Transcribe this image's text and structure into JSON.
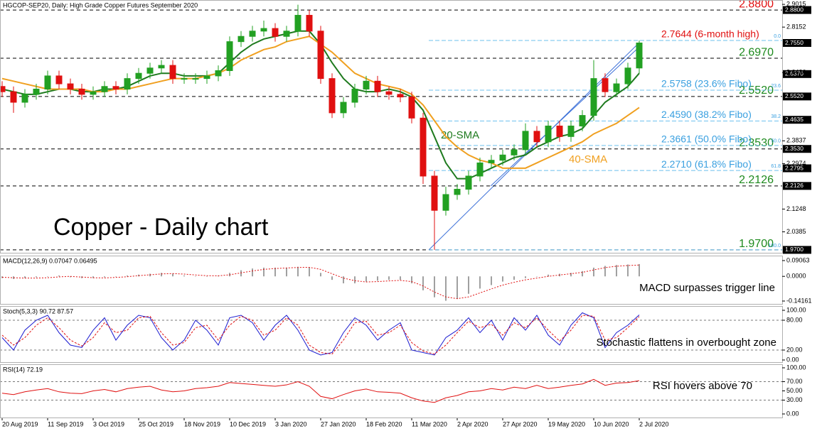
{
  "chart_data": [
    {
      "type": "candlestick",
      "title": "HGCOP-SEP20, Daily:  High Grade Copper Futures September 2020",
      "annotation": "Copper - Daily chart",
      "categories": [
        "20 Aug 2019",
        null,
        null,
        null,
        "11 Sep 2019",
        null,
        null,
        null,
        "3 Oct 2019",
        null,
        null,
        null,
        "25 Oct 2019",
        null,
        null,
        null,
        "18 Nov 2019",
        null,
        null,
        null,
        "10 Dec 2019",
        null,
        null,
        null,
        "3 Jan 2020",
        null,
        null,
        null,
        "27 Jan 2020",
        null,
        null,
        null,
        "18 Feb 2020",
        null,
        null,
        null,
        "11 Mar 2020",
        null,
        null,
        null,
        "2 Apr 2020",
        null,
        null,
        null,
        "27 Apr 2020",
        null,
        null,
        null,
        "19 May 2020",
        null,
        null,
        null,
        "10 Jun 2020",
        null,
        null,
        null,
        "2 Jul 2020"
      ],
      "open": [
        2.59,
        2.57,
        2.53,
        2.56,
        2.58,
        2.63,
        2.6,
        2.58,
        2.56,
        2.57,
        2.59,
        2.58,
        2.62,
        2.64,
        2.66,
        2.67,
        2.62,
        2.62,
        2.62,
        2.63,
        2.65,
        2.76,
        2.78,
        2.8,
        2.81,
        2.78,
        2.8,
        2.86,
        2.8,
        2.62,
        2.49,
        2.53,
        2.58,
        2.61,
        2.57,
        2.56,
        2.55,
        2.47,
        2.25,
        2.12,
        2.18,
        2.2,
        2.25,
        2.3,
        2.31,
        2.33,
        2.35,
        2.42,
        2.38,
        2.44,
        2.4,
        2.44,
        2.48,
        2.62,
        2.57,
        2.6,
        2.66
      ],
      "high": [
        2.61,
        2.59,
        2.58,
        2.6,
        2.65,
        2.65,
        2.62,
        2.6,
        2.59,
        2.61,
        2.61,
        2.64,
        2.66,
        2.68,
        2.69,
        2.69,
        2.64,
        2.64,
        2.65,
        2.67,
        2.78,
        2.8,
        2.82,
        2.84,
        2.83,
        2.82,
        2.9,
        2.88,
        2.82,
        2.64,
        2.55,
        2.6,
        2.63,
        2.63,
        2.59,
        2.58,
        2.57,
        2.49,
        2.27,
        2.21,
        2.22,
        2.27,
        2.32,
        2.33,
        2.35,
        2.37,
        2.45,
        2.44,
        2.46,
        2.46,
        2.46,
        2.5,
        2.69,
        2.64,
        2.62,
        2.68,
        2.7644
      ],
      "low": [
        2.55,
        2.49,
        2.51,
        2.54,
        2.56,
        2.58,
        2.56,
        2.54,
        2.54,
        2.55,
        2.56,
        2.56,
        2.6,
        2.62,
        2.64,
        2.6,
        2.6,
        2.6,
        2.6,
        2.61,
        2.63,
        2.74,
        2.76,
        2.78,
        2.76,
        2.76,
        2.78,
        2.78,
        2.6,
        2.47,
        2.47,
        2.51,
        2.56,
        2.55,
        2.54,
        2.53,
        2.45,
        2.22,
        1.97,
        2.1,
        2.16,
        2.18,
        2.23,
        2.28,
        2.29,
        2.31,
        2.33,
        2.36,
        2.36,
        2.38,
        2.38,
        2.42,
        2.46,
        2.55,
        2.55,
        2.58,
        2.64
      ],
      "close": [
        2.57,
        2.53,
        2.56,
        2.58,
        2.63,
        2.6,
        2.58,
        2.56,
        2.57,
        2.59,
        2.58,
        2.62,
        2.64,
        2.66,
        2.67,
        2.62,
        2.62,
        2.62,
        2.63,
        2.65,
        2.76,
        2.78,
        2.8,
        2.81,
        2.78,
        2.8,
        2.86,
        2.8,
        2.62,
        2.49,
        2.53,
        2.58,
        2.61,
        2.57,
        2.56,
        2.55,
        2.47,
        2.25,
        2.12,
        2.18,
        2.2,
        2.25,
        2.3,
        2.31,
        2.33,
        2.35,
        2.42,
        2.38,
        2.44,
        2.4,
        2.44,
        2.48,
        2.62,
        2.57,
        2.6,
        2.66,
        2.755
      ],
      "up_color": "#22a022",
      "down_color": "#e01010",
      "series": [
        {
          "name": "20-SMA",
          "color": "#1e7a1e",
          "values": [
            2.58,
            2.57,
            2.56,
            2.56,
            2.57,
            2.58,
            2.58,
            2.57,
            2.57,
            2.58,
            2.58,
            2.59,
            2.61,
            2.63,
            2.64,
            2.64,
            2.63,
            2.63,
            2.63,
            2.64,
            2.68,
            2.72,
            2.75,
            2.77,
            2.78,
            2.79,
            2.8,
            2.8,
            2.75,
            2.68,
            2.62,
            2.58,
            2.57,
            2.57,
            2.58,
            2.57,
            2.55,
            2.5,
            2.4,
            2.3,
            2.24,
            2.24,
            2.26,
            2.28,
            2.3,
            2.32,
            2.33,
            2.36,
            2.38,
            2.4,
            2.41,
            2.43,
            2.48,
            2.53,
            2.56,
            2.59,
            2.64
          ]
        },
        {
          "name": "40-SMA",
          "color": "#f0a020",
          "values": [
            2.62,
            2.61,
            2.6,
            2.59,
            2.58,
            2.58,
            2.58,
            2.58,
            2.57,
            2.57,
            2.58,
            2.58,
            2.59,
            2.6,
            2.61,
            2.62,
            2.62,
            2.62,
            2.63,
            2.64,
            2.66,
            2.69,
            2.71,
            2.73,
            2.74,
            2.76,
            2.77,
            2.78,
            2.75,
            2.72,
            2.68,
            2.64,
            2.62,
            2.6,
            2.59,
            2.58,
            2.56,
            2.52,
            2.46,
            2.4,
            2.36,
            2.33,
            2.31,
            2.3,
            2.28,
            2.28,
            2.28,
            2.3,
            2.32,
            2.34,
            2.36,
            2.38,
            2.41,
            2.43,
            2.45,
            2.48,
            2.51
          ]
        }
      ],
      "levels": [
        {
          "value": 2.88,
          "label": "2.8800",
          "color": "#e01010"
        },
        {
          "value": 2.697,
          "label": "2.6970",
          "color": "#1e8a1e"
        },
        {
          "value": 2.552,
          "label": "2.5520",
          "color": "#1e8a1e"
        },
        {
          "value": 2.353,
          "label": "2.3530",
          "color": "#1e8a1e"
        },
        {
          "value": 2.2126,
          "label": "2.2126",
          "color": "#1e8a1e"
        },
        {
          "value": 1.97,
          "label": "1.9700",
          "color": "#1e8a1e"
        }
      ],
      "fibo": [
        {
          "value": 2.7644,
          "label": "2.7644 (6-month high)",
          "ratio_label": "0.0",
          "color": "#e01010"
        },
        {
          "value": 2.5758,
          "label": "2.5758 (23.6% Fibo)",
          "ratio_label": "23.6",
          "color": "#3aa0e0"
        },
        {
          "value": 2.459,
          "label": "2.4590 (38.2% Fibo)",
          "ratio_label": "38.2",
          "color": "#3aa0e0"
        },
        {
          "value": 2.3661,
          "label": "2.3661 (50.0% Fibo)",
          "ratio_label": "50.0",
          "color": "#3aa0e0"
        },
        {
          "value": 2.271,
          "label": "2.2710 (61.8% Fibo)",
          "ratio_label": "61.8",
          "color": "#3aa0e0"
        },
        {
          "value": 1.97,
          "ratio_label": "100.0",
          "color": "#3aa0e0"
        }
      ],
      "axis_markers": [
        {
          "value": 2.88,
          "label": "2.8800"
        },
        {
          "value": 2.755,
          "label": "2.7550"
        },
        {
          "value": 2.637,
          "label": "2.6370"
        },
        {
          "value": 2.552,
          "label": "2.5520"
        },
        {
          "value": 2.4635,
          "label": "2.4635"
        },
        {
          "value": 2.353,
          "label": "2.3530"
        },
        {
          "value": 2.2795,
          "label": "2.2795"
        },
        {
          "value": 2.2126,
          "label": "2.2126"
        },
        {
          "value": 1.97,
          "label": "1.9700"
        }
      ],
      "ylim": [
        1.959,
        2.918
      ],
      "yticks": [
        2.9015,
        2.8152,
        2.6426,
        2.3837,
        2.2974,
        2.1248,
        2.0385
      ]
    },
    {
      "type": "macd",
      "title": "MACD(12,26,9) 0.07047 0.06495",
      "annotation": "MACD surpasses trigger line",
      "series": [
        {
          "style": "histogram",
          "color": "#a0a0a0",
          "values": [
            -0.01,
            -0.015,
            -0.01,
            -0.005,
            0.0,
            0.005,
            -0.005,
            -0.01,
            -0.01,
            -0.005,
            0.0,
            0.005,
            0.01,
            0.015,
            0.02,
            0.015,
            0.005,
            0.0,
            0.0,
            0.005,
            0.02,
            0.035,
            0.045,
            0.05,
            0.05,
            0.05,
            0.055,
            0.05,
            0.02,
            -0.02,
            -0.04,
            -0.04,
            -0.03,
            -0.025,
            -0.02,
            -0.02,
            -0.04,
            -0.08,
            -0.12,
            -0.14,
            -0.13,
            -0.1,
            -0.07,
            -0.05,
            -0.03,
            -0.02,
            -0.01,
            0.0,
            0.01,
            0.015,
            0.02,
            0.03,
            0.05,
            0.06,
            0.065,
            0.068,
            0.07047
          ]
        },
        {
          "style": "dotted",
          "color": "#e01010",
          "values": [
            -0.005,
            -0.008,
            -0.01,
            -0.01,
            -0.008,
            -0.003,
            0.0,
            -0.004,
            -0.008,
            -0.009,
            -0.006,
            -0.002,
            0.004,
            0.009,
            0.014,
            0.016,
            0.013,
            0.008,
            0.004,
            0.003,
            0.009,
            0.02,
            0.031,
            0.04,
            0.045,
            0.048,
            0.051,
            0.052,
            0.04,
            0.015,
            -0.01,
            -0.025,
            -0.032,
            -0.03,
            -0.026,
            -0.023,
            -0.03,
            -0.055,
            -0.09,
            -0.118,
            -0.128,
            -0.118,
            -0.095,
            -0.072,
            -0.05,
            -0.034,
            -0.02,
            -0.01,
            0.0,
            0.008,
            0.015,
            0.023,
            0.037,
            0.05,
            0.058,
            0.062,
            0.06495
          ]
        }
      ],
      "ylim": [
        -0.158,
        0.119
      ],
      "yticks": [
        0.09063,
        {
          "value": 0,
          "label": "0.0000"
        },
        -0.14161
      ]
    },
    {
      "type": "oscillator",
      "title": "Stoch(5,3,3) 90.72 87.57",
      "annotation": "Stochastic flattens in overbought zone",
      "series": [
        {
          "style": "solid",
          "color": "#1a1ad0",
          "values": [
            45,
            20,
            60,
            80,
            90,
            55,
            30,
            25,
            60,
            85,
            40,
            70,
            90,
            85,
            45,
            20,
            40,
            80,
            60,
            30,
            85,
            90,
            75,
            40,
            70,
            90,
            60,
            20,
            10,
            15,
            55,
            85,
            70,
            40,
            60,
            75,
            20,
            15,
            10,
            45,
            60,
            85,
            55,
            80,
            40,
            85,
            60,
            90,
            50,
            30,
            70,
            95,
            85,
            25,
            55,
            70,
            90.72
          ]
        },
        {
          "style": "dashed",
          "color": "#e01010",
          "values": [
            50,
            30,
            45,
            70,
            85,
            65,
            40,
            28,
            45,
            75,
            55,
            60,
            85,
            88,
            55,
            30,
            35,
            65,
            70,
            40,
            70,
            88,
            80,
            50,
            60,
            85,
            70,
            30,
            15,
            12,
            40,
            75,
            78,
            50,
            55,
            70,
            35,
            18,
            12,
            30,
            55,
            78,
            65,
            72,
            50,
            75,
            65,
            85,
            60,
            38,
            60,
            90,
            88,
            40,
            45,
            65,
            87.57
          ]
        }
      ],
      "levels": [
        80,
        20
      ],
      "ylim": [
        -4.3,
        108.6
      ],
      "yticks": [
        {
          "value": 100,
          "label": "100.00"
        },
        {
          "value": 80,
          "label": "80.00"
        },
        {
          "value": 20,
          "label": "20.00"
        },
        {
          "value": 0,
          "label": "0.00"
        }
      ]
    },
    {
      "type": "oscillator",
      "title": "RSI(14) 72.19",
      "annotation": "RSI hovers above 70",
      "series": [
        {
          "style": "solid",
          "color": "#e01010",
          "values": [
            45,
            42,
            48,
            52,
            55,
            48,
            45,
            44,
            50,
            53,
            48,
            55,
            58,
            60,
            52,
            48,
            50,
            55,
            57,
            60,
            68,
            66,
            64,
            62,
            60,
            63,
            70,
            60,
            38,
            33,
            42,
            50,
            54,
            48,
            47,
            45,
            35,
            28,
            25,
            35,
            40,
            48,
            50,
            55,
            52,
            58,
            55,
            62,
            55,
            58,
            62,
            65,
            75,
            62,
            67,
            68,
            72.19
          ]
        }
      ],
      "levels": [
        70,
        30
      ],
      "ylim": [
        -7.7,
        107.7
      ],
      "yticks": [
        {
          "value": 100,
          "label": "100.00"
        },
        {
          "value": 70,
          "label": "70.00"
        },
        {
          "value": 50,
          "label": "50.00"
        },
        {
          "value": 30,
          "label": "30.00"
        },
        {
          "value": 0,
          "label": "0.00"
        }
      ]
    }
  ]
}
